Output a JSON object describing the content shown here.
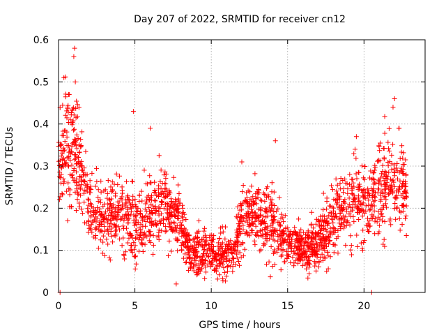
{
  "chart_data": {
    "type": "scatter",
    "title": "Day 207 of 2022, SRMTID for receiver cn12",
    "xlabel": "GPS time / hours",
    "ylabel": "SRMTID / TECUs",
    "xlim": [
      0,
      24
    ],
    "ylim": [
      0,
      0.6
    ],
    "xticks": [
      "0",
      "5",
      "10",
      "15",
      "20"
    ],
    "xtick_values": [
      0,
      5,
      10,
      15,
      20
    ],
    "yticks": [
      "0",
      "0.1",
      "0.2",
      "0.3",
      "0.4",
      "0.5",
      "0.6"
    ],
    "ytick_values": [
      0,
      0.1,
      0.2,
      0.3,
      0.4,
      0.5,
      0.6
    ],
    "grid": true,
    "marker": "+",
    "color": "#ff0000",
    "envelope": {
      "x": [
        0,
        0.5,
        1,
        1.5,
        2,
        3,
        4,
        5,
        6,
        7,
        8,
        8.5,
        9,
        10,
        11,
        11.5,
        12,
        13,
        14,
        15,
        16,
        17,
        18,
        19,
        20,
        21,
        22,
        22.8
      ],
      "median": [
        0.3,
        0.34,
        0.32,
        0.27,
        0.2,
        0.17,
        0.19,
        0.15,
        0.18,
        0.2,
        0.16,
        0.1,
        0.09,
        0.09,
        0.09,
        0.1,
        0.17,
        0.18,
        0.16,
        0.12,
        0.1,
        0.12,
        0.17,
        0.21,
        0.2,
        0.23,
        0.27,
        0.22
      ],
      "spread": [
        0.08,
        0.09,
        0.09,
        0.07,
        0.05,
        0.05,
        0.06,
        0.05,
        0.06,
        0.06,
        0.05,
        0.03,
        0.03,
        0.03,
        0.03,
        0.03,
        0.05,
        0.05,
        0.05,
        0.04,
        0.03,
        0.04,
        0.05,
        0.06,
        0.06,
        0.06,
        0.07,
        0.05
      ]
    },
    "point_count": 2200,
    "peaks": [
      {
        "x": 1.05,
        "y": 0.58
      },
      {
        "x": 1.0,
        "y": 0.56
      },
      {
        "x": 0.35,
        "y": 0.51
      },
      {
        "x": 1.1,
        "y": 0.5
      },
      {
        "x": 0.7,
        "y": 0.47
      },
      {
        "x": 4.9,
        "y": 0.43
      },
      {
        "x": 6.0,
        "y": 0.39
      },
      {
        "x": 14.2,
        "y": 0.36
      },
      {
        "x": 12.0,
        "y": 0.31
      },
      {
        "x": 19.5,
        "y": 0.37
      },
      {
        "x": 22.0,
        "y": 0.46
      },
      {
        "x": 21.9,
        "y": 0.44
      },
      {
        "x": 22.3,
        "y": 0.39
      },
      {
        "x": 0.1,
        "y": 0.0
      },
      {
        "x": 20.5,
        "y": 0.0
      }
    ]
  }
}
